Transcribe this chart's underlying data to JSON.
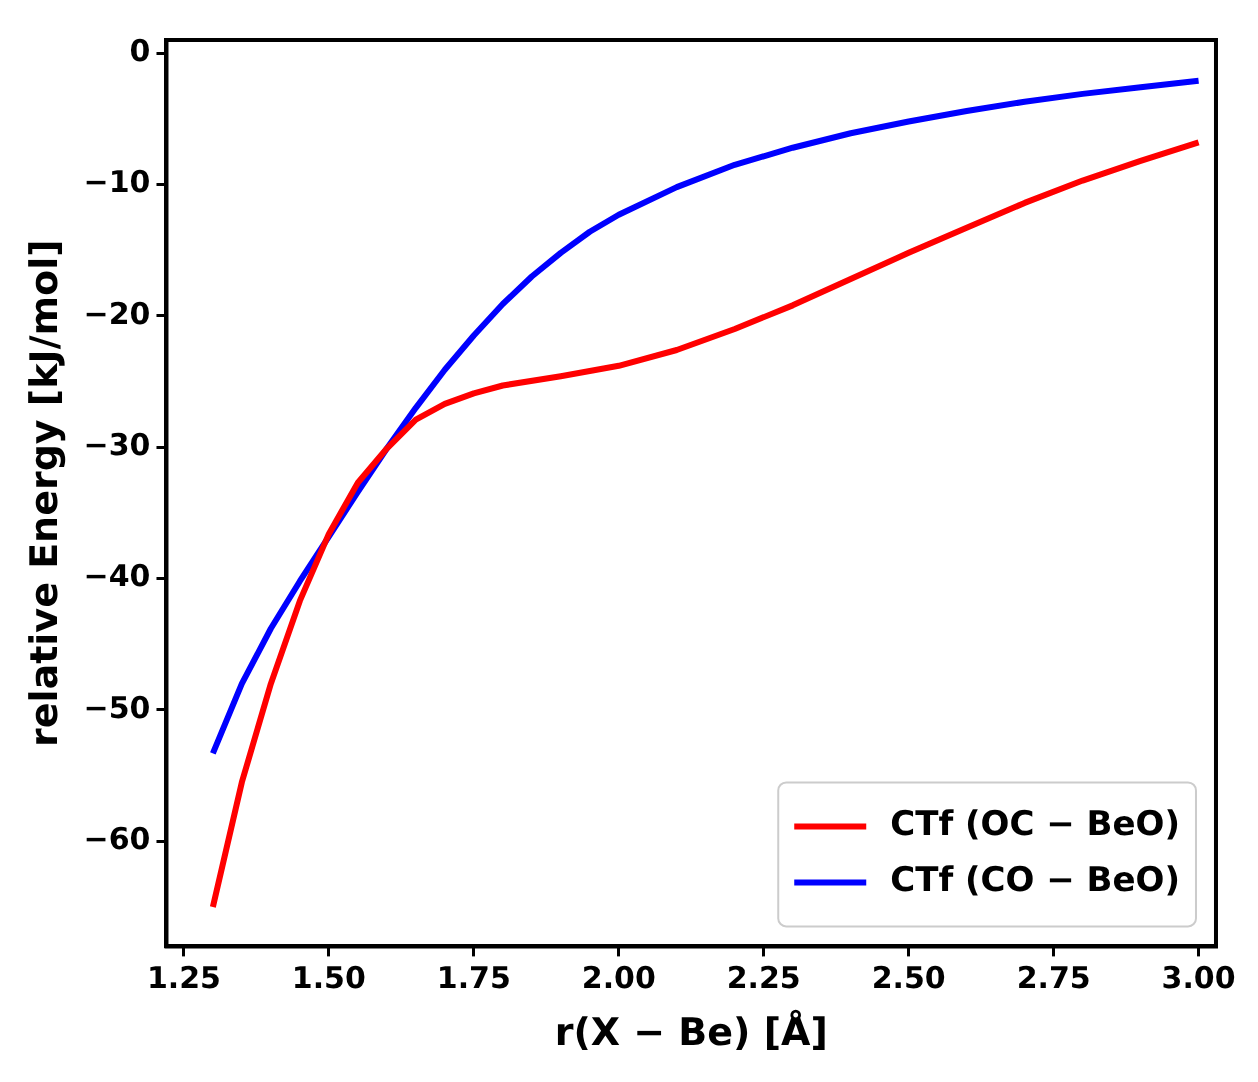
{
  "chart_data": {
    "type": "line",
    "xlabel": "r(X − Be) [Å]",
    "ylabel": "relative Energy [kJ/mol]",
    "xlim": [
      1.22,
      3.03
    ],
    "ylim": [
      -68,
      1
    ],
    "xticks": [
      1.25,
      {
        "value": 1.5,
        "label": "1.50"
      },
      1.75,
      {
        "value": 2,
        "label": "2.00"
      },
      2.25,
      {
        "value": 2.5,
        "label": "2.50"
      },
      2.75,
      {
        "value": 3,
        "label": "3.00"
      }
    ],
    "yticks": [
      -60,
      -50,
      -40,
      -30,
      -20,
      -10,
      0
    ],
    "legend": "bottom right",
    "grid": false,
    "marker": "none",
    "line_style": "solid",
    "series": [
      {
        "name": "CTf (OC − BeO)",
        "color": "#ff0000",
        "x": [
          1.3,
          1.35,
          1.4,
          1.45,
          1.5,
          1.55,
          1.6,
          1.65,
          1.7,
          1.75,
          1.8,
          1.9,
          2.0,
          2.1,
          2.2,
          2.3,
          2.4,
          2.5,
          2.6,
          2.7,
          2.8,
          2.9,
          3.0
        ],
        "values": [
          -65,
          -55.5,
          -48,
          -41.7,
          -36.6,
          -32.7,
          -30.1,
          -27.9,
          -26.7,
          -25.9,
          -25.3,
          -24.6,
          -23.8,
          -22.6,
          -21,
          -19.2,
          -17.2,
          -15.2,
          -13.3,
          -11.4,
          -9.7,
          -8.2,
          -6.8
        ]
      },
      {
        "name": "CTf (CO − BeO)",
        "color": "#0000ff",
        "x": [
          1.3,
          1.35,
          1.4,
          1.45,
          1.5,
          1.55,
          1.6,
          1.65,
          1.7,
          1.75,
          1.8,
          1.85,
          1.9,
          1.95,
          2.0,
          2.1,
          2.2,
          2.3,
          2.4,
          2.5,
          2.6,
          2.7,
          2.8,
          2.9,
          3.0
        ],
        "values": [
          -53.3,
          -48,
          -43.8,
          -40.2,
          -36.8,
          -33.4,
          -30.1,
          -27,
          -24.1,
          -21.5,
          -19.1,
          -17,
          -15.2,
          -13.6,
          -12.3,
          -10.2,
          -8.5,
          -7.2,
          -6.1,
          -5.2,
          -4.4,
          -3.7,
          -3.1,
          -2.6,
          -2.1
        ]
      }
    ]
  }
}
